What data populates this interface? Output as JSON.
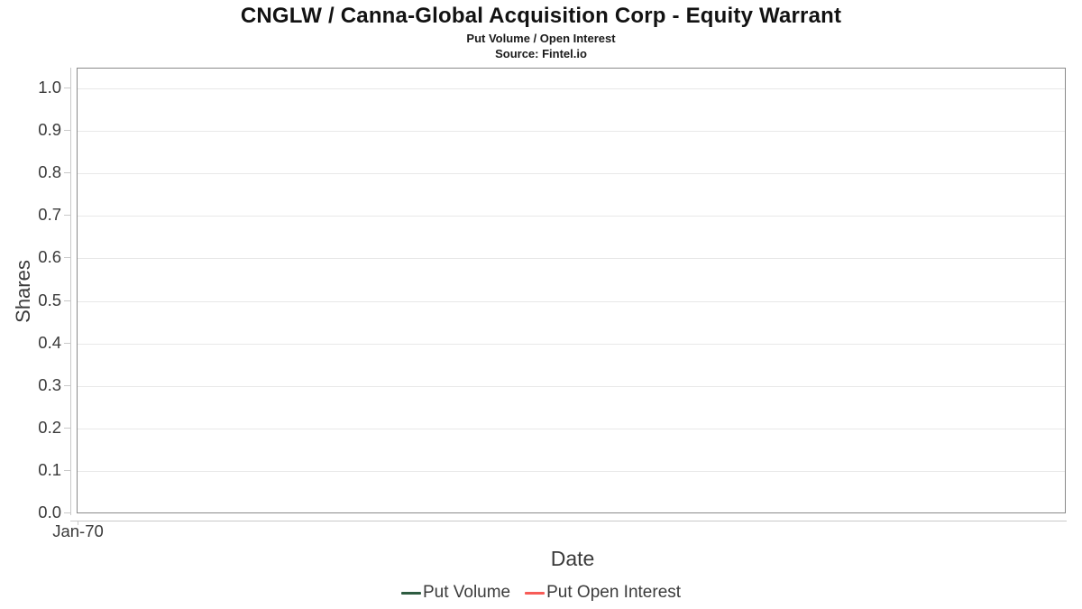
{
  "chart_data": {
    "type": "line",
    "title": "CNGLW / Canna-Global Acquisition Corp - Equity Warrant",
    "subtitle": "Put Volume / Open Interest",
    "source": "Source: Fintel.io",
    "xlabel": "Date",
    "ylabel": "Shares",
    "ylim": [
      0.0,
      1.05
    ],
    "y_ticks": [
      0.0,
      0.1,
      0.2,
      0.3,
      0.4,
      0.5,
      0.6,
      0.7,
      0.8,
      0.9,
      1.0
    ],
    "y_tick_labels_top_down": [
      "1.0",
      "0.9",
      "0.8",
      "0.7",
      "0.6",
      "0.5",
      "0.4",
      "0.3",
      "0.2",
      "0.1",
      "0.0"
    ],
    "x_tick_labels": [
      "Jan-70"
    ],
    "grid": true,
    "legend_position": "bottom",
    "plot_is_empty": true,
    "series": [
      {
        "name": "Put Volume",
        "color": "#2e5c41",
        "x": [],
        "values": []
      },
      {
        "name": "Put Open Interest",
        "color": "#f75c57",
        "x": [],
        "values": []
      }
    ],
    "colors": {
      "plot_border": "#8a8a8a",
      "gridline": "#e8e8e8",
      "axis_line": "#c9c9c9",
      "text": "#3a3a3a",
      "title_text": "#121212"
    }
  }
}
